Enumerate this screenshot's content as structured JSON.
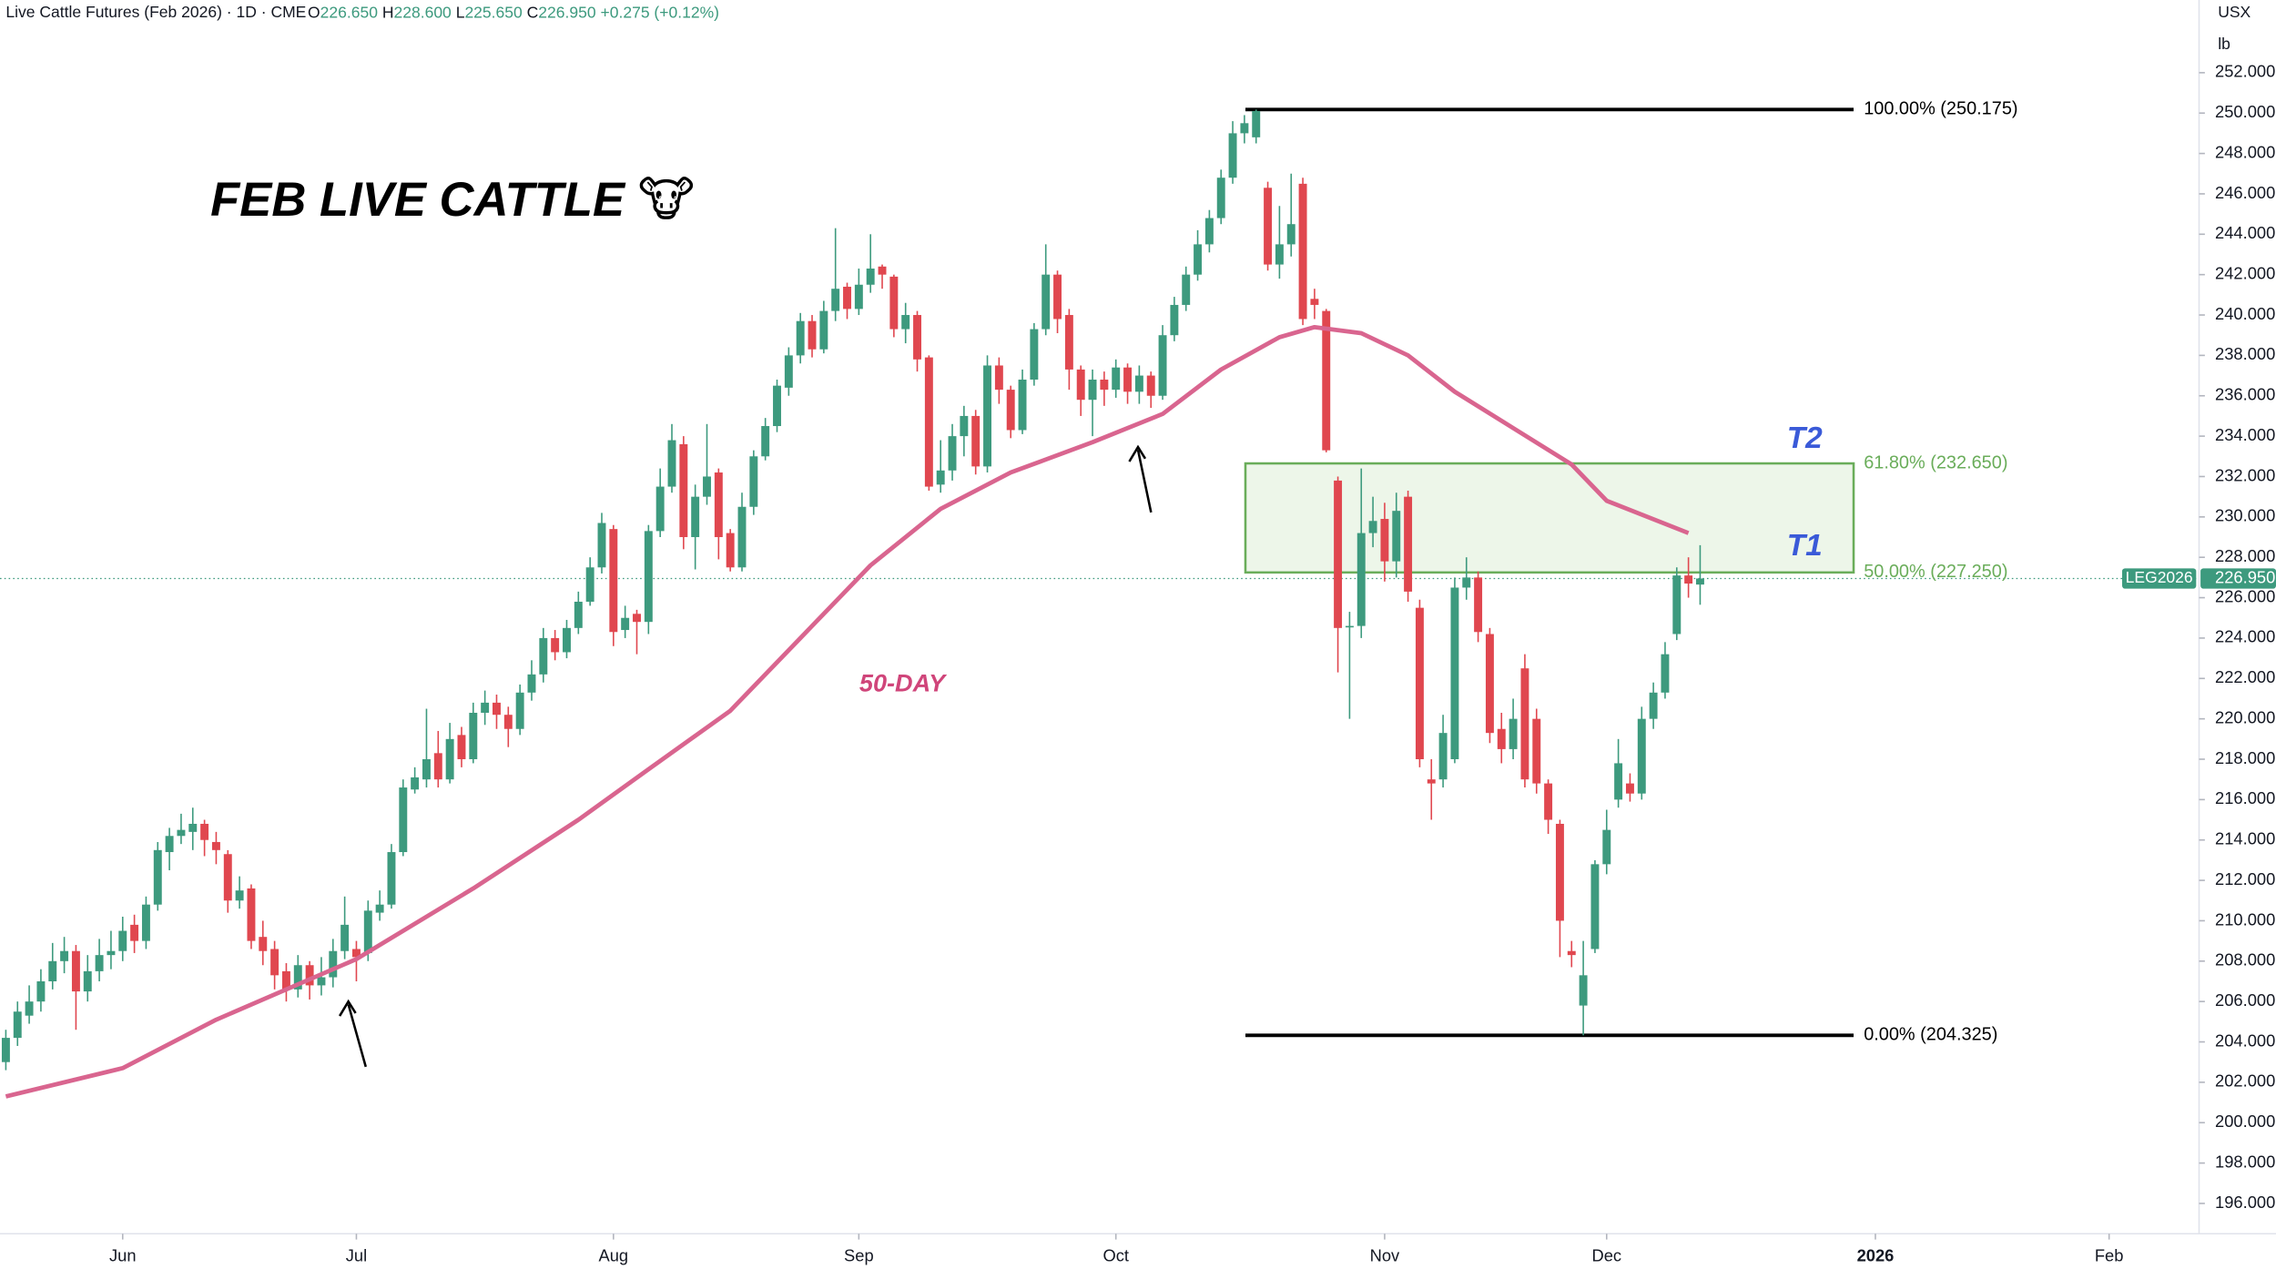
{
  "header": {
    "title": "Live Cattle Futures (Feb 2026) · 1D · CME",
    "ohlc": [
      {
        "label": "O",
        "value": "226.650"
      },
      {
        "label": "H",
        "value": "228.600"
      },
      {
        "label": "L",
        "value": "225.650"
      },
      {
        "label": "C",
        "value": "226.950"
      },
      {
        "label": "",
        "value": "+0.275 (+0.12%)"
      }
    ],
    "currency": "USX",
    "unit": "lb"
  },
  "chart_data": {
    "type": "candlestick",
    "title": "FEB LIVE CATTLE 🐮",
    "up_color": "#3d9a7e",
    "down_color": "#e0474f",
    "xlim": [
      -0.5,
      187.7
    ],
    "xticks": [
      {
        "value": 10,
        "label": "Jun"
      },
      {
        "value": 30,
        "label": "Jul"
      },
      {
        "value": 52,
        "label": "Aug"
      },
      {
        "value": 73,
        "label": "Sep"
      },
      {
        "value": 95,
        "label": "Oct"
      },
      {
        "value": 118,
        "label": "Nov"
      },
      {
        "value": 137,
        "label": "Dec"
      },
      {
        "value": 160,
        "label": "2026"
      },
      {
        "value": 180,
        "label": "Feb"
      }
    ],
    "ylim": [
      194.5,
      255.6
    ],
    "yticks": [
      {
        "value": 196,
        "label": "196.000"
      },
      {
        "value": 198,
        "label": "198.000"
      },
      {
        "value": 200,
        "label": "200.000"
      },
      {
        "value": 202,
        "label": "202.000"
      },
      {
        "value": 204,
        "label": "204.000"
      },
      {
        "value": 206,
        "label": "206.000"
      },
      {
        "value": 208,
        "label": "208.000"
      },
      {
        "value": 210,
        "label": "210.000"
      },
      {
        "value": 212,
        "label": "212.000"
      },
      {
        "value": 214,
        "label": "214.000"
      },
      {
        "value": 216,
        "label": "216.000"
      },
      {
        "value": 218,
        "label": "218.000"
      },
      {
        "value": 220,
        "label": "220.000"
      },
      {
        "value": 222,
        "label": "222.000"
      },
      {
        "value": 224,
        "label": "224.000"
      },
      {
        "value": 226,
        "label": "226.000"
      },
      {
        "value": 228,
        "label": "228.000"
      },
      {
        "value": 230,
        "label": "230.000"
      },
      {
        "value": 232,
        "label": "232.000"
      },
      {
        "value": 234,
        "label": "234.000"
      },
      {
        "value": 236,
        "label": "236.000"
      },
      {
        "value": 238,
        "label": "238.000"
      },
      {
        "value": 240,
        "label": "240.000"
      },
      {
        "value": 242,
        "label": "242.000"
      },
      {
        "value": 244,
        "label": "244.000"
      },
      {
        "value": 246,
        "label": "246.000"
      },
      {
        "value": 248,
        "label": "248.000"
      },
      {
        "value": 250,
        "label": "250.000"
      },
      {
        "value": 252,
        "label": "252.000"
      }
    ],
    "candles": {
      "open": [
        203.0,
        204.2,
        205.3,
        206.0,
        207.0,
        208.0,
        208.5,
        206.5,
        207.5,
        208.3,
        208.5,
        209.8,
        209.0,
        210.8,
        213.4,
        214.2,
        214.4,
        214.8,
        213.9,
        213.3,
        211.0,
        211.6,
        209.2,
        208.6,
        207.5,
        206.6,
        207.8,
        206.8,
        207.2,
        208.5,
        208.6,
        208.4,
        210.4,
        210.8,
        213.4,
        216.5,
        217.0,
        218.3,
        217.0,
        219.2,
        218.0,
        220.3,
        220.8,
        220.2,
        219.5,
        221.3,
        222.2,
        224.0,
        223.3,
        224.5,
        225.8,
        227.5,
        229.4,
        224.4,
        225.2,
        224.8,
        229.3,
        231.5,
        233.6,
        229.0,
        231.0,
        232.2,
        229.2,
        227.5,
        230.5,
        233.0,
        234.5,
        236.4,
        238.0,
        239.7,
        238.3,
        240.2,
        241.4,
        240.3,
        241.5,
        242.4,
        241.9,
        239.3,
        240.0,
        237.9,
        231.6,
        232.3,
        234.0,
        235.0,
        232.5,
        237.5,
        236.3,
        234.3,
        236.8,
        239.3,
        242.0,
        240.0,
        237.3,
        235.8,
        236.8,
        236.3,
        237.4,
        236.2,
        237.0,
        236.0,
        239.0,
        240.5,
        242.0,
        243.5,
        244.8,
        246.8,
        249.0,
        248.8,
        246.3,
        242.5,
        243.5,
        246.5,
        240.8,
        240.2,
        231.8,
        224.6,
        224.6,
        229.2,
        229.9,
        227.8,
        231.0,
        225.5,
        217.0,
        217.0,
        218.0,
        226.5,
        227.0,
        224.2,
        219.5,
        218.5,
        222.5,
        220.0,
        216.8,
        214.8,
        208.5,
        205.8,
        208.6,
        212.8,
        216.0,
        216.8,
        216.3,
        220.0,
        221.3,
        224.2,
        227.1,
        226.65
      ],
      "high": [
        204.6,
        206.0,
        206.8,
        207.6,
        208.9,
        209.2,
        208.8,
        208.3,
        209.1,
        209.5,
        210.2,
        210.3,
        211.2,
        213.9,
        214.6,
        215.3,
        215.6,
        215.0,
        214.4,
        213.5,
        212.2,
        211.8,
        210.0,
        209.0,
        207.9,
        208.3,
        208.0,
        208.2,
        209.1,
        211.2,
        209.0,
        211.0,
        211.5,
        213.8,
        217.0,
        217.6,
        220.5,
        219.4,
        219.8,
        219.6,
        220.8,
        221.4,
        221.2,
        220.6,
        221.7,
        222.9,
        224.5,
        224.4,
        224.9,
        226.3,
        228.0,
        230.2,
        229.6,
        225.6,
        225.4,
        229.6,
        232.4,
        234.6,
        234.0,
        231.6,
        234.6,
        232.4,
        229.4,
        231.2,
        233.3,
        234.9,
        236.8,
        238.4,
        240.1,
        240.0,
        240.7,
        244.3,
        241.6,
        242.3,
        244.0,
        242.5,
        242.0,
        240.6,
        240.2,
        238.0,
        233.8,
        234.6,
        235.5,
        235.3,
        238.0,
        237.9,
        236.5,
        237.3,
        239.6,
        243.5,
        242.2,
        240.3,
        237.5,
        237.3,
        237.2,
        237.8,
        237.6,
        237.5,
        237.2,
        239.5,
        240.9,
        242.4,
        244.2,
        245.2,
        247.2,
        249.6,
        249.9,
        250.175,
        246.6,
        245.4,
        247.0,
        246.8,
        241.3,
        240.3,
        232.0,
        225.3,
        232.4,
        231.0,
        230.7,
        231.2,
        231.3,
        225.9,
        218.0,
        220.2,
        227.0,
        228.0,
        227.3,
        224.5,
        220.3,
        221.0,
        223.2,
        220.5,
        217.0,
        215.0,
        209.0,
        209.0,
        213.0,
        215.5,
        219.0,
        217.3,
        220.6,
        221.8,
        223.8,
        227.5,
        228.0,
        228.6
      ],
      "low": [
        202.6,
        203.8,
        204.9,
        205.5,
        206.6,
        207.4,
        204.6,
        206.0,
        207.0,
        207.6,
        208.0,
        208.4,
        208.6,
        210.5,
        212.5,
        213.8,
        213.5,
        213.2,
        212.8,
        210.4,
        210.6,
        208.6,
        207.8,
        206.6,
        206.0,
        206.2,
        206.1,
        206.3,
        206.7,
        208.1,
        207.0,
        208.0,
        210.0,
        210.6,
        213.2,
        216.3,
        216.6,
        216.6,
        216.8,
        217.6,
        217.8,
        219.7,
        219.5,
        218.6,
        219.2,
        220.9,
        221.8,
        222.9,
        223.0,
        224.2,
        225.6,
        227.2,
        223.6,
        224.0,
        223.2,
        224.2,
        229.0,
        231.2,
        228.4,
        227.4,
        230.6,
        227.9,
        227.3,
        227.3,
        230.1,
        232.8,
        234.2,
        236.0,
        237.6,
        237.9,
        238.1,
        239.7,
        239.8,
        240.0,
        241.1,
        241.3,
        238.9,
        238.6,
        237.2,
        231.3,
        231.2,
        231.8,
        233.0,
        232.1,
        232.2,
        235.6,
        233.9,
        234.1,
        236.5,
        239.0,
        239.1,
        236.3,
        235.0,
        234.0,
        235.5,
        235.9,
        235.6,
        235.6,
        235.4,
        235.8,
        238.7,
        240.2,
        241.7,
        243.1,
        244.5,
        246.5,
        248.5,
        248.5,
        242.2,
        241.8,
        242.9,
        239.5,
        239.8,
        233.2,
        222.3,
        220.0,
        224.0,
        228.5,
        226.8,
        227.0,
        225.8,
        217.6,
        215.0,
        216.6,
        217.8,
        225.9,
        223.8,
        218.8,
        217.8,
        218.0,
        216.6,
        216.3,
        214.3,
        208.2,
        207.7,
        204.325,
        208.4,
        212.3,
        215.6,
        215.9,
        216.0,
        219.5,
        221.0,
        223.9,
        226.0,
        225.65
      ],
      "close": [
        204.2,
        205.5,
        206.0,
        207.0,
        208.0,
        208.5,
        206.5,
        207.5,
        208.3,
        208.5,
        209.5,
        209.0,
        210.8,
        213.5,
        214.2,
        214.5,
        214.8,
        214.0,
        213.5,
        211.0,
        211.5,
        209.0,
        208.5,
        207.3,
        206.6,
        207.8,
        206.8,
        207.2,
        208.5,
        209.8,
        208.2,
        210.5,
        210.8,
        213.4,
        216.6,
        217.1,
        218.0,
        217.0,
        219.0,
        218.0,
        220.3,
        220.8,
        220.2,
        219.5,
        221.3,
        222.2,
        224.0,
        223.3,
        224.5,
        225.8,
        227.5,
        229.7,
        224.3,
        225.0,
        224.8,
        229.3,
        231.5,
        233.8,
        229.0,
        231.0,
        232.0,
        229.0,
        227.5,
        230.5,
        233.0,
        234.5,
        236.5,
        238.0,
        239.7,
        238.3,
        240.2,
        241.3,
        240.3,
        241.5,
        242.3,
        242.0,
        239.3,
        240.0,
        237.8,
        231.5,
        232.3,
        234.0,
        235.0,
        232.5,
        237.5,
        236.3,
        234.3,
        236.8,
        239.3,
        242.0,
        239.8,
        237.3,
        235.8,
        236.8,
        236.3,
        237.4,
        236.2,
        237.0,
        236.0,
        239.0,
        240.5,
        242.0,
        243.5,
        244.8,
        246.8,
        249.0,
        249.5,
        250.1,
        242.5,
        243.5,
        244.5,
        239.8,
        240.5,
        233.3,
        224.5,
        224.6,
        229.2,
        229.8,
        227.8,
        230.3,
        226.3,
        218.0,
        216.8,
        219.3,
        226.5,
        227.0,
        224.3,
        219.3,
        218.5,
        220.0,
        217.0,
        216.8,
        215.0,
        210.0,
        208.3,
        207.3,
        212.8,
        214.5,
        217.8,
        216.3,
        220.0,
        221.3,
        223.2,
        227.1,
        226.7,
        226.95
      ]
    },
    "ma": {
      "name": "50-DAY",
      "color": "#d9658f",
      "x": [
        0,
        10,
        18,
        30,
        40,
        49,
        55,
        62,
        68,
        74,
        80,
        86,
        93,
        99,
        104,
        109,
        112,
        116,
        120,
        124,
        129,
        134,
        137,
        144
      ],
      "values": [
        201.3,
        202.7,
        205.1,
        208.1,
        211.6,
        215.0,
        217.5,
        220.4,
        224.0,
        227.6,
        230.4,
        232.2,
        233.7,
        235.1,
        237.3,
        238.9,
        239.4,
        239.1,
        238.0,
        236.2,
        234.4,
        232.6,
        230.8,
        229.2
      ]
    },
    "fib_levels": [
      {
        "value": 250.175,
        "label": "100.00% (250.175)",
        "color": "#000000"
      },
      {
        "value": 232.65,
        "label": "61.80% (232.650)",
        "color": "#6aad5a"
      },
      {
        "value": 227.25,
        "label": "50.00% (227.250)",
        "color": "#6aad5a"
      },
      {
        "value": 204.325,
        "label": "0.00% (204.325)",
        "color": "#000000"
      }
    ],
    "targets": [
      "T2",
      "T1"
    ],
    "last_price": {
      "name": "LEG2026",
      "value": 226.95,
      "value_label": "226.950",
      "color": "#3d9a7e"
    }
  }
}
